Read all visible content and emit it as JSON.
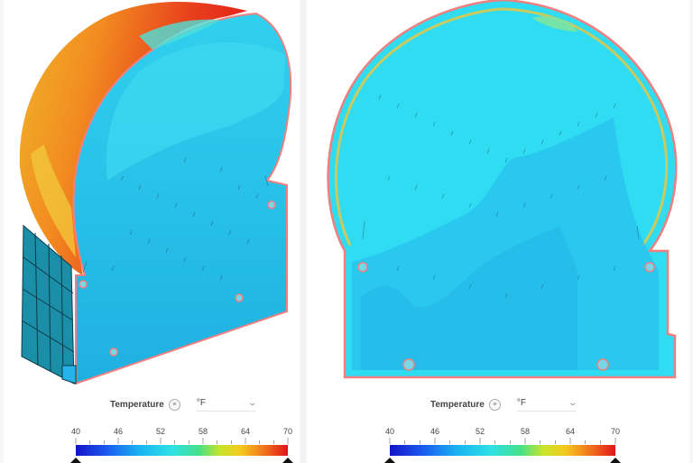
{
  "left_view": {
    "legend": {
      "label": "Temperature",
      "info": "≡",
      "unit": "°F"
    },
    "colorbar": {
      "ticks": [
        "40",
        "46",
        "52",
        "58",
        "64",
        "70"
      ]
    }
  },
  "right_view": {
    "legend": {
      "label": "Temperature",
      "info": "≡",
      "unit": "°F"
    },
    "colorbar": {
      "ticks": [
        "40",
        "46",
        "52",
        "58",
        "64",
        "70"
      ]
    }
  },
  "colors": {
    "fluid": "#29d2f0",
    "cool": "#27b3ea",
    "hot": "#e8241a",
    "warm": "#f08a1f",
    "outline": "#f08080"
  }
}
